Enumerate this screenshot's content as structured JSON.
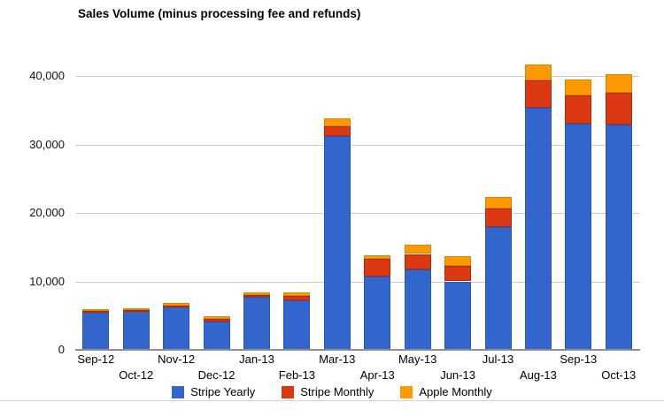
{
  "title": "Sales Volume (minus processing fee and refunds)",
  "chart_data": {
    "type": "bar",
    "stacked": true,
    "title": "Sales Volume (minus processing fee and refunds)",
    "xlabel": "",
    "ylabel": "",
    "ylim": [
      0,
      43000
    ],
    "grid": true,
    "legend_position": "bottom",
    "categories": [
      "Sep-12",
      "Oct-12",
      "Nov-12",
      "Dec-12",
      "Jan-13",
      "Feb-13",
      "Mar-13",
      "Apr-13",
      "May-13",
      "Jun-13",
      "Jul-13",
      "Aug-13",
      "Sep-13",
      "Oct-13"
    ],
    "series": [
      {
        "name": "Stripe Yearly",
        "color": "#3366CC",
        "border_color": "#2B57BD",
        "values": [
          5500,
          5700,
          6300,
          4100,
          7700,
          7200,
          31200,
          10700,
          11800,
          10000,
          17900,
          35400,
          33000,
          32900
        ]
      },
      {
        "name": "Stripe Monthly",
        "color": "#DC3912",
        "border_color": "#AA2B0D",
        "values": [
          150,
          150,
          200,
          400,
          350,
          650,
          1400,
          2550,
          2200,
          2300,
          2800,
          3900,
          4200,
          4700
        ]
      },
      {
        "name": "Apple Monthly",
        "color": "#FF9900",
        "border_color": "#D98300",
        "values": [
          250,
          250,
          300,
          450,
          400,
          550,
          1200,
          500,
          1300,
          1400,
          1600,
          2400,
          2300,
          2600
        ]
      }
    ],
    "yticks": {
      "values": [
        0,
        10000,
        20000,
        30000,
        40000
      ],
      "labels": [
        "0",
        "10,000",
        "20,000",
        "30,000",
        "40,000"
      ]
    }
  }
}
